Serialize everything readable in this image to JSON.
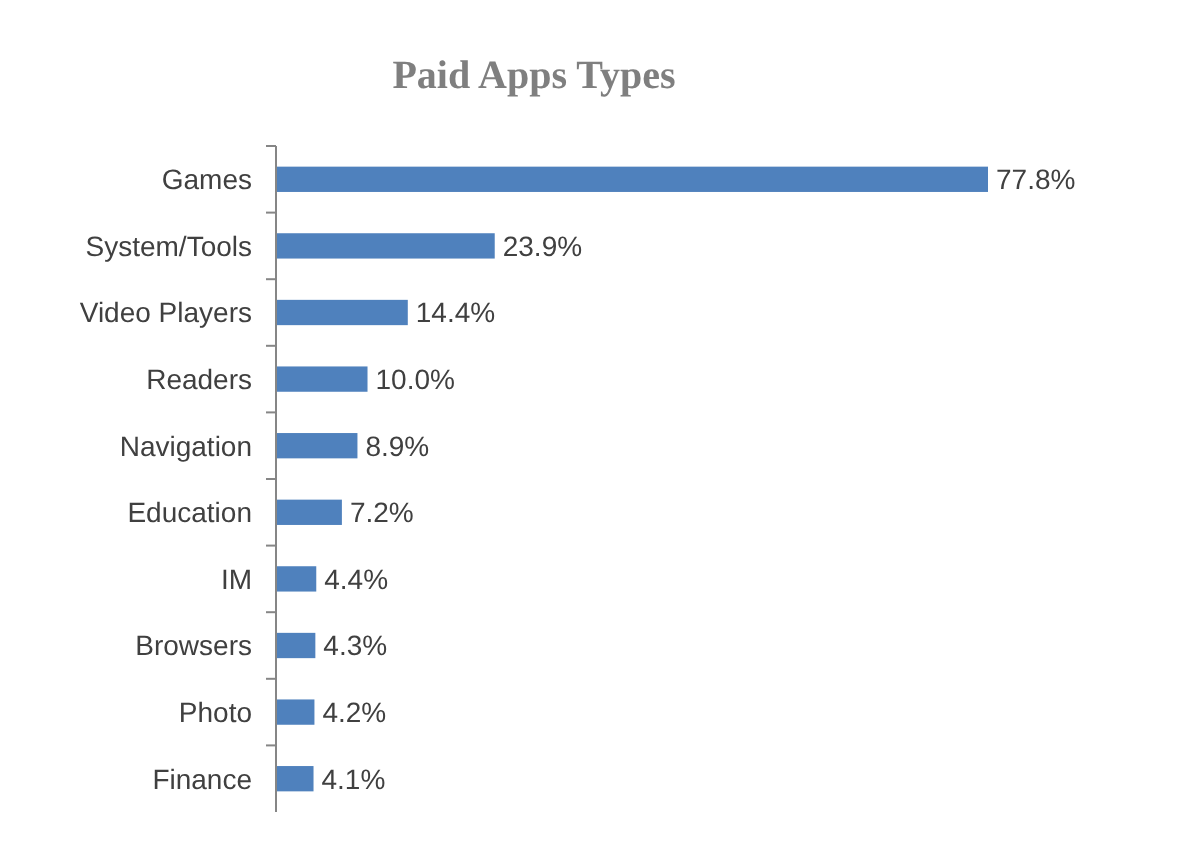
{
  "chart_data": {
    "type": "bar",
    "orientation": "horizontal",
    "title": "Paid Apps Types",
    "categories": [
      "Games",
      "System/Tools",
      "Video Players",
      "Readers",
      "Navigation",
      "Education",
      "IM",
      "Browsers",
      "Photo",
      "Finance"
    ],
    "values": [
      77.8,
      23.9,
      14.4,
      10.0,
      8.9,
      7.2,
      4.4,
      4.3,
      4.2,
      4.1
    ],
    "value_labels": [
      "77.8%",
      "23.9%",
      "14.4%",
      "10.0%",
      "8.9%",
      "7.2%",
      "4.4%",
      "4.3%",
      "4.2%",
      "4.1%"
    ],
    "color": "#4f81bd"
  }
}
